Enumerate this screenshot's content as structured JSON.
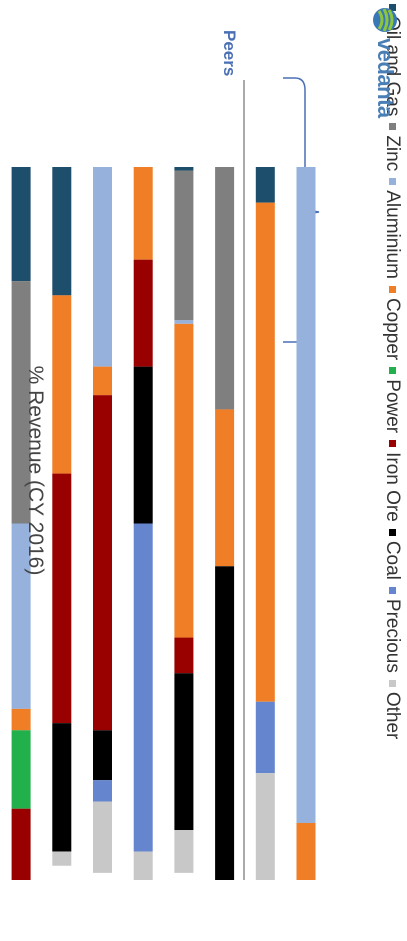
{
  "chart_data": {
    "type": "bar",
    "stacked": true,
    "orientation": "horizontal",
    "title": "% Revenue (CY 2016)",
    "group_label": "Peers",
    "brand": "vedanta",
    "xlim": [
      0,
      100
    ],
    "legend_position": "top",
    "series": [
      {
        "name": "Oil and Gas",
        "color": "#1d4e6b",
        "values": [
          0,
          5,
          0,
          0.5,
          0,
          0,
          18,
          16
        ]
      },
      {
        "name": "Zinc",
        "color": "#7f7f7f",
        "values": [
          0,
          0,
          34,
          21,
          0,
          0,
          0,
          34
        ]
      },
      {
        "name": "Aluminium",
        "color": "#95b1dc",
        "values": [
          92,
          0,
          0,
          0.5,
          0,
          28,
          0,
          26
        ]
      },
      {
        "name": "Copper",
        "color": "#f07e26",
        "values": [
          8,
          70,
          22,
          44,
          13,
          4,
          25,
          3
        ]
      },
      {
        "name": "Power",
        "color": "#21b04b",
        "values": [
          0,
          0,
          0,
          0,
          0,
          0,
          0,
          11
        ]
      },
      {
        "name": "Iron Ore",
        "color": "#990000",
        "values": [
          0,
          0,
          0,
          5,
          15,
          47,
          35,
          10
        ]
      },
      {
        "name": "Coal",
        "color": "#000000",
        "values": [
          0,
          0,
          44,
          22,
          22,
          7,
          18,
          0
        ]
      },
      {
        "name": "Precious",
        "color": "#6685cf",
        "values": [
          0,
          10,
          0,
          0,
          46,
          3,
          0,
          0
        ]
      },
      {
        "name": "Other",
        "color": "#c8c8c8",
        "values": [
          0,
          15,
          0,
          6,
          4,
          10,
          2,
          0
        ]
      }
    ]
  }
}
